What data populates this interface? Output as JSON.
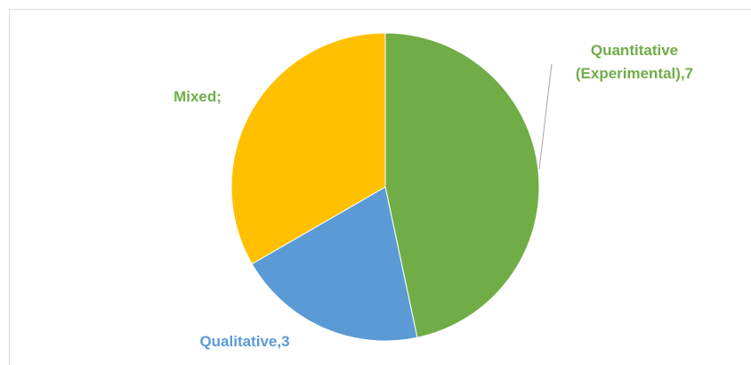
{
  "chart_data": {
    "type": "pie",
    "title": "",
    "slices": [
      {
        "name": "Quantitative (Experimental)",
        "value": 7,
        "color": "#70ad47",
        "label_lines": [
          "Quantitative",
          "(Experimental),7"
        ]
      },
      {
        "name": "Qualitative",
        "value": 3,
        "color": "#5b9bd5",
        "label_lines": [
          "Qualitative,3"
        ]
      },
      {
        "name": "Mixed",
        "value": 5,
        "color": "#ffc000",
        "label_lines": [
          "Mixed;"
        ]
      }
    ],
    "start_angle_deg": 0,
    "direction": "clockwise",
    "legend": "none",
    "label_colors": {
      "Quantitative (Experimental)": "#70ad47",
      "Qualitative": "#5b9bd5",
      "Mixed": "#70ad47"
    }
  }
}
